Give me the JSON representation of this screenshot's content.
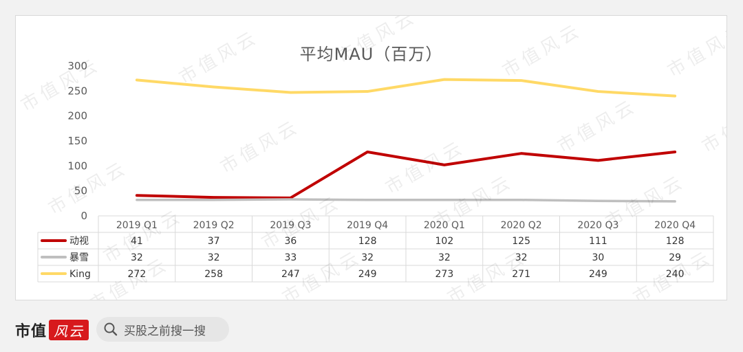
{
  "colors": {
    "donghua": "#c00000",
    "baoxue": "#bfbfbf",
    "king": "#ffd966",
    "axis_text": "#595959",
    "grid": "#d9d9d9"
  },
  "chart_data": {
    "type": "line",
    "title": "平均MAU（百万）",
    "categories": [
      "2019 Q1",
      "2019 Q2",
      "2019 Q3",
      "2019 Q4",
      "2020 Q1",
      "2020 Q2",
      "2020 Q3",
      "2020 Q4"
    ],
    "y_ticks": [
      "300",
      "250",
      "200",
      "150",
      "100",
      "50",
      "0"
    ],
    "ylim": [
      0,
      300
    ],
    "grid": false,
    "legend": "data-table",
    "series": [
      {
        "name": "动视",
        "values": [
          41,
          37,
          36,
          128,
          102,
          125,
          111,
          128
        ]
      },
      {
        "name": "暴雪",
        "values": [
          32,
          32,
          33,
          32,
          32,
          32,
          30,
          29
        ]
      },
      {
        "name": "King",
        "values": [
          272,
          258,
          247,
          249,
          273,
          271,
          249,
          240
        ]
      }
    ]
  },
  "watermark": "市值风云",
  "footer": {
    "brand": "市值",
    "brand_seal": "风云",
    "search_text": "买股之前搜一搜"
  }
}
